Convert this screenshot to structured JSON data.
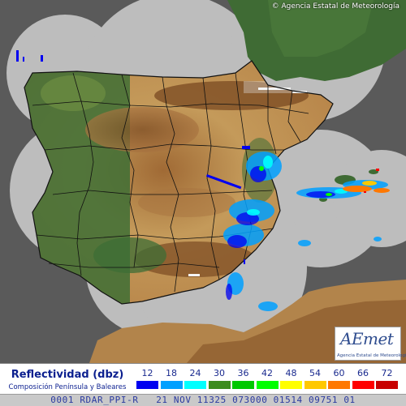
{
  "header": {
    "copyright": "© Agencia Estatal de Meteorología"
  },
  "logo": {
    "brand": "AEmet",
    "subtitle": "Agencia Estatal de Meteorología"
  },
  "legend": {
    "title": "Reflectividad (dbz)",
    "subtitle": "Composición Península y Baleares",
    "scale": [
      {
        "value": "12",
        "color": "#0000f0"
      },
      {
        "value": "18",
        "color": "#00a0ff"
      },
      {
        "value": "24",
        "color": "#00ffff"
      },
      {
        "value": "30",
        "color": "#3c8c1e"
      },
      {
        "value": "36",
        "color": "#00c800"
      },
      {
        "value": "42",
        "color": "#00ff00"
      },
      {
        "value": "48",
        "color": "#ffff00"
      },
      {
        "value": "54",
        "color": "#ffc800"
      },
      {
        "value": "60",
        "color": "#ff7800"
      },
      {
        "value": "66",
        "color": "#ff0000"
      },
      {
        "value": "72",
        "color": "#c80000"
      }
    ]
  },
  "footer": {
    "text": "0001 RDAR_PPI-R   21 NOV 11325 073000 01514 09751 01"
  },
  "colors": {
    "sea": "#5a5a5a",
    "coverage": "#bdbdbd",
    "land_low": "#2f5f2c",
    "land_mid": "#b8864a",
    "land_high": "#7a4a22",
    "borders": "#111111"
  }
}
